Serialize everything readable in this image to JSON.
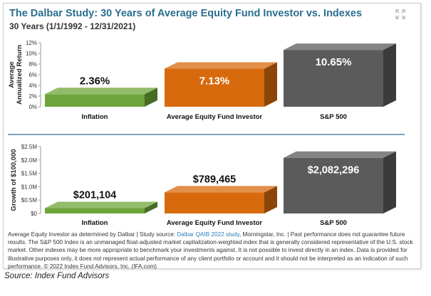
{
  "header": {
    "title": "The Dalbar Study: 30 Years of Average Equity Fund Investor vs. Indexes",
    "subtitle": "30 Years (1/1/1992 - 12/31/2021)"
  },
  "chart_data": [
    {
      "type": "bar",
      "ylabel": "Average Annualized Return",
      "ylabel_lines": [
        "Average",
        "Annualized Return"
      ],
      "ylim": [
        0,
        12
      ],
      "yticks": [
        "0%",
        "2%",
        "4%",
        "6%",
        "8%",
        "10%",
        "12%"
      ],
      "categories": [
        "Inflation",
        "Average Equity Fund Investor",
        "S&P 500"
      ],
      "values": [
        2.36,
        7.13,
        10.65
      ],
      "data_labels": [
        "2.36%",
        "7.13%",
        "10.65%"
      ],
      "bar_colors": [
        "#6ea53a",
        "#d86a0e",
        "#5b5b5b"
      ],
      "grid": false
    },
    {
      "type": "bar",
      "ylabel": "Growth of $100,000",
      "ylim": [
        0,
        2500000
      ],
      "yticks": [
        "$0",
        "$0.5M",
        "$1.0M",
        "$1.5M",
        "$2.0M",
        "$2.5M"
      ],
      "categories": [
        "Inflation",
        "Average Equity Fund Investor",
        "S&P 500"
      ],
      "values": [
        201104,
        789465,
        2082296
      ],
      "data_labels": [
        "$201,104",
        "$789,465",
        "$2,082,296"
      ],
      "bar_colors": [
        "#6ea53a",
        "#d86a0e",
        "#5b5b5b"
      ],
      "grid": false
    }
  ],
  "colors": {
    "title": "#2a6f8f",
    "divider": "#2a6f8f",
    "link": "#2a7ab5"
  },
  "icons": {
    "expand": "expand-icon"
  },
  "footnote": {
    "text_before_link": "Average Equity Investor as determined by Dalbar | Study source: ",
    "link_text": "Dalbar QAIB 2022 study",
    "text_after_link": ", Morningstar, Inc. | Past performance does not guarantee future results. The S&P 500 Index is an unmanaged float-adjusted market capitalization-weighted index that is generally considered representative of the U.S. stock market. Other indexes may be more appropriate to benchmark your investments against. It is not possible to invest directly in an index. Data is provided for illustrative purposes only, it does not represent actual performance of any client portfolio or account and it should not be interpreted as an indication of such performance. © 2022 Index Fund Advisors, Inc. (IFA.com)"
  },
  "source": "Source: Index Fund Advisors"
}
